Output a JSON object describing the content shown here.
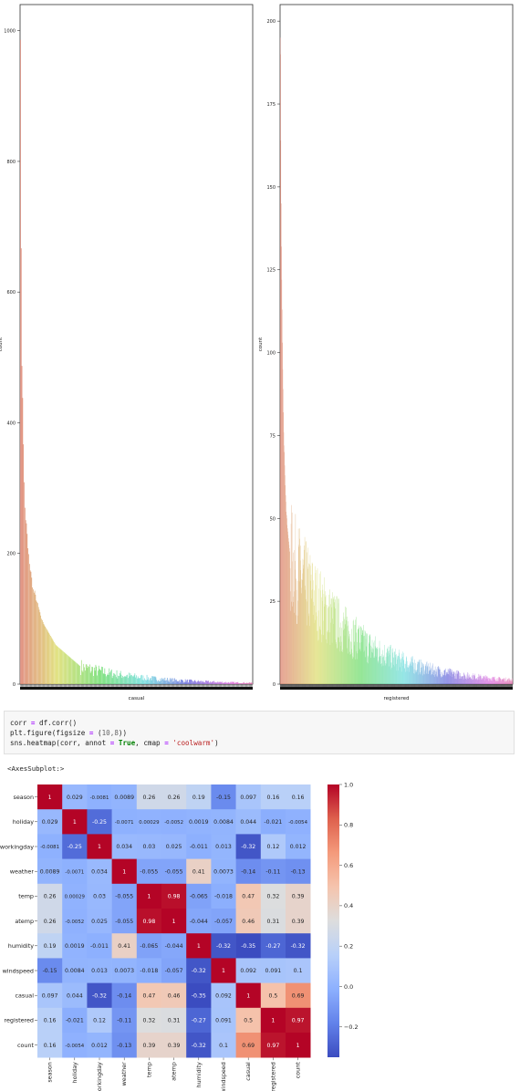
{
  "chart_data": [
    {
      "type": "bar",
      "xlabel": "casual",
      "ylabel": "count",
      "ylim": [
        0,
        1040
      ],
      "yticks": [
        0,
        200,
        400,
        600,
        800,
        1000
      ],
      "categories_count": 309,
      "values_description_note": "",
      "values": [
        986,
        667,
        487,
        438,
        367,
        309,
        270,
        251,
        246,
        230,
        208,
        199,
        184,
        174,
        172,
        163,
        148,
        145,
        140,
        143,
        137,
        128,
        126,
        124,
        118,
        114,
        110,
        105,
        100,
        98,
        95,
        92,
        90,
        88,
        86,
        84,
        82,
        80,
        78,
        76,
        74,
        72,
        70,
        68,
        66,
        64,
        62,
        60,
        59,
        58,
        57,
        56,
        55,
        54,
        53,
        52,
        51,
        50,
        49,
        48,
        47,
        46,
        45,
        44,
        43,
        42,
        41,
        40,
        39,
        38,
        37,
        36,
        35,
        34,
        33,
        32,
        31,
        30,
        29,
        28
      ]
    },
    {
      "type": "bar",
      "xlabel": "registered",
      "ylabel": "count",
      "ylim": [
        0,
        205
      ],
      "yticks": [
        0,
        25,
        50,
        75,
        100,
        125,
        150,
        175,
        200
      ],
      "categories_count": 731,
      "values": [
        195,
        190,
        164,
        145,
        132,
        122,
        113,
        103,
        95,
        89,
        82,
        76,
        72,
        70,
        66,
        63,
        60,
        57,
        55,
        52,
        51,
        50,
        48,
        47,
        46,
        45,
        44,
        43,
        42,
        41,
        40
      ]
    },
    {
      "type": "heatmap",
      "labels": [
        "season",
        "holiday",
        "workingday",
        "weather",
        "temp",
        "atemp",
        "humidity",
        "windspeed",
        "casual",
        "registered",
        "count"
      ],
      "annotations": [
        [
          "1",
          "0.029",
          "-0.0081",
          "0.0089",
          "0.26",
          "0.26",
          "0.19",
          "-0.15",
          "0.097",
          "0.16",
          "0.16"
        ],
        [
          "0.029",
          "1",
          "-0.25",
          "-0.0071",
          "0.00029",
          "-0.0052",
          "0.0019",
          "0.0084",
          "0.044",
          "-0.021",
          "-0.0054"
        ],
        [
          "-0.0081",
          "-0.25",
          "1",
          "0.034",
          "0.03",
          "0.025",
          "-0.011",
          "0.013",
          "-0.32",
          "0.12",
          "0.012"
        ],
        [
          "0.0089",
          "-0.0071",
          "0.034",
          "1",
          "-0.055",
          "-0.055",
          "0.41",
          "0.0073",
          "-0.14",
          "-0.11",
          "-0.13"
        ],
        [
          "0.26",
          "0.00029",
          "0.03",
          "-0.055",
          "1",
          "0.98",
          "-0.065",
          "-0.018",
          "0.47",
          "0.32",
          "0.39"
        ],
        [
          "0.26",
          "-0.0052",
          "0.025",
          "-0.055",
          "0.98",
          "1",
          "-0.044",
          "-0.057",
          "0.46",
          "0.31",
          "0.39"
        ],
        [
          "0.19",
          "0.0019",
          "-0.011",
          "0.41",
          "-0.065",
          "-0.044",
          "1",
          "-0.32",
          "-0.35",
          "-0.27",
          "-0.32"
        ],
        [
          "-0.15",
          "0.0084",
          "0.013",
          "0.0073",
          "-0.018",
          "-0.057",
          "-0.32",
          "1",
          "0.092",
          "0.091",
          "0.1"
        ],
        [
          "0.097",
          "0.044",
          "-0.32",
          "-0.14",
          "0.47",
          "0.46",
          "-0.35",
          "0.092",
          "1",
          "0.5",
          "0.69"
        ],
        [
          "0.16",
          "-0.021",
          "0.12",
          "-0.11",
          "0.32",
          "0.31",
          "-0.27",
          "0.091",
          "0.5",
          "1",
          "0.97"
        ],
        [
          "0.16",
          "-0.0054",
          "0.012",
          "-0.13",
          "0.39",
          "0.39",
          "-0.32",
          "0.1",
          "0.69",
          "0.97",
          "1"
        ]
      ],
      "colorbar_ticks": [
        "1.0",
        "0.8",
        "0.6",
        "0.4",
        "0.2",
        "0.0",
        "−0.2"
      ],
      "colorbar_range": [
        -0.35,
        1.0
      ],
      "cmap": "coolwarm"
    }
  ],
  "code": {
    "line1": {
      "a": "corr ",
      "op": "=",
      "b": " df.corr()"
    },
    "line2": {
      "a": "plt.figure(figsize ",
      "op": "=",
      "b": " (",
      "num": "10,8",
      "c": "))"
    },
    "line3": {
      "a": "sns.heatmap(corr, annot ",
      "op1": "=",
      "kw": " True",
      "b": ", cmap ",
      "op2": "=",
      "str": " 'coolwarm'",
      "c": ")"
    }
  },
  "output_text": "<AxesSubplot:>"
}
